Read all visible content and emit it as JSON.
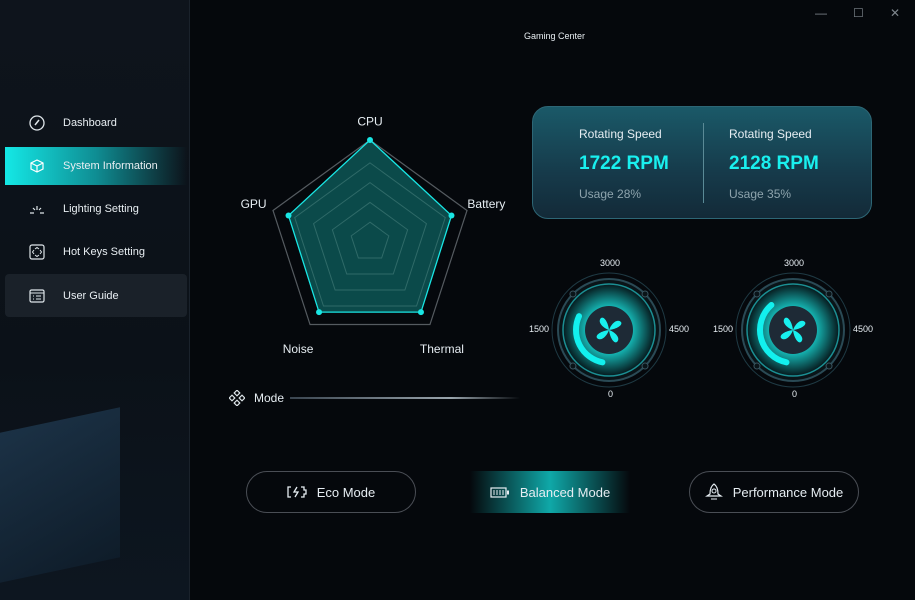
{
  "window": {
    "title": "Gaming Center",
    "minimize": "—",
    "maximize": "☐",
    "close": "✕"
  },
  "sidebar": {
    "items": [
      {
        "label": "Dashboard",
        "icon": "speedometer-icon"
      },
      {
        "label": "System Information",
        "icon": "cube-icon",
        "active": true
      },
      {
        "label": "Lighting Setting",
        "icon": "light-icon"
      },
      {
        "label": "Hot Keys Setting",
        "icon": "keys-icon"
      },
      {
        "label": "User Guide",
        "icon": "guide-icon",
        "hover": true
      }
    ]
  },
  "radar": {
    "axes": [
      "CPU",
      "Battery",
      "Thermal",
      "Noise",
      "GPU"
    ],
    "values": [
      100,
      84,
      85,
      85,
      84
    ],
    "max": 100,
    "levels": 5,
    "accent": "#19e6e4"
  },
  "mode": {
    "label": "Mode",
    "buttons": [
      {
        "label": "Eco Mode",
        "icon": "eco-battery-icon"
      },
      {
        "label": "Balanced Mode",
        "icon": "battery-icon",
        "active": true
      },
      {
        "label": "Performance Mode",
        "icon": "rocket-icon"
      }
    ]
  },
  "fans": [
    {
      "label": "Rotating Speed",
      "value": "1722 RPM",
      "usage": "Usage 28%",
      "rpm": 1722
    },
    {
      "label": "Rotating Speed",
      "value": "2128 RPM",
      "usage": "Usage 35%",
      "rpm": 2128
    }
  ],
  "gauge_ticks": {
    "top": "3000",
    "left": "1500",
    "right": "4500",
    "bottom": "0"
  }
}
